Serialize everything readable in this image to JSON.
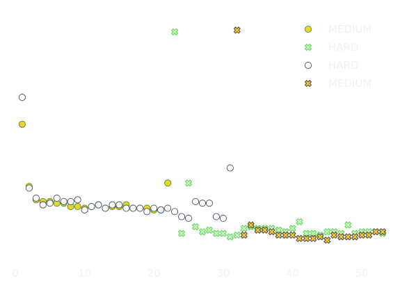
{
  "chart_data": {
    "type": "scatter",
    "title": "",
    "xlabel": "",
    "ylabel": "",
    "xlim": [
      -1,
      54
    ],
    "ylim": [
      -2,
      147
    ],
    "grid": false,
    "legend_placement": "top-right",
    "x_ticks": [
      0,
      10,
      20,
      30,
      40,
      50
    ],
    "y_ticks": [],
    "series": [
      {
        "name": "MEDIUM",
        "marker": "circle",
        "fill": "#e8d62a",
        "stroke": "#3a7f2a",
        "points": [
          [
            1,
            78
          ],
          [
            2,
            41
          ],
          [
            3,
            33
          ],
          [
            4,
            32
          ],
          [
            5,
            32
          ],
          [
            6,
            31
          ],
          [
            7,
            31
          ],
          [
            8,
            29
          ],
          [
            9,
            29
          ],
          [
            10,
            28
          ],
          [
            11,
            29
          ],
          [
            12,
            30
          ],
          [
            13,
            28
          ],
          [
            14,
            29
          ],
          [
            15,
            29
          ],
          [
            16,
            30
          ],
          [
            17,
            28
          ],
          [
            18,
            28
          ],
          [
            19,
            28
          ],
          [
            20,
            27
          ],
          [
            21,
            27
          ],
          [
            22,
            43
          ]
        ]
      },
      {
        "name": "HARD",
        "marker": "x",
        "fill": "#c8f5b8",
        "stroke": "#4fd24f",
        "points": [
          [
            23,
            133
          ],
          [
            24,
            13
          ],
          [
            25,
            43
          ],
          [
            26,
            17
          ],
          [
            27,
            14
          ],
          [
            28,
            15
          ],
          [
            29,
            13
          ],
          [
            30,
            13
          ],
          [
            31,
            11
          ],
          [
            32,
            12
          ],
          [
            33,
            16
          ],
          [
            34,
            17
          ],
          [
            35,
            16
          ],
          [
            36,
            16
          ],
          [
            37,
            16
          ],
          [
            38,
            15
          ],
          [
            39,
            14
          ],
          [
            40,
            16
          ],
          [
            41,
            20
          ],
          [
            42,
            13
          ],
          [
            43,
            13
          ],
          [
            44,
            12
          ],
          [
            45,
            14
          ],
          [
            46,
            14
          ],
          [
            47,
            13
          ],
          [
            48,
            18
          ],
          [
            49,
            13
          ],
          [
            50,
            14
          ],
          [
            51,
            14
          ],
          [
            52,
            14
          ],
          [
            53,
            13
          ]
        ]
      },
      {
        "name": "HARD",
        "marker": "circle",
        "fill": "#ffffff",
        "stroke": "#2b3a4a",
        "points": [
          [
            1,
            94
          ],
          [
            2,
            40
          ],
          [
            3,
            34
          ],
          [
            4,
            30
          ],
          [
            5,
            31
          ],
          [
            6,
            34
          ],
          [
            7,
            32
          ],
          [
            8,
            32
          ],
          [
            9,
            33
          ],
          [
            10,
            27
          ],
          [
            11,
            29
          ],
          [
            12,
            30
          ],
          [
            13,
            28
          ],
          [
            14,
            30
          ],
          [
            15,
            30
          ],
          [
            16,
            28
          ],
          [
            17,
            28
          ],
          [
            18,
            28
          ],
          [
            19,
            26
          ],
          [
            20,
            28
          ],
          [
            21,
            27
          ],
          [
            22,
            28
          ],
          [
            23,
            26
          ],
          [
            24,
            23
          ],
          [
            25,
            22
          ],
          [
            26,
            32
          ],
          [
            27,
            31
          ],
          [
            28,
            31
          ],
          [
            29,
            23
          ],
          [
            30,
            22
          ],
          [
            31,
            52
          ]
        ]
      },
      {
        "name": "MEDIUM",
        "marker": "x",
        "fill": "#f2c23a",
        "stroke": "#3a3a3a",
        "points": [
          [
            32,
            134
          ],
          [
            33,
            12
          ],
          [
            34,
            18
          ],
          [
            35,
            15
          ],
          [
            36,
            15
          ],
          [
            37,
            14
          ],
          [
            38,
            12
          ],
          [
            39,
            12
          ],
          [
            40,
            12
          ],
          [
            41,
            10
          ],
          [
            42,
            10
          ],
          [
            43,
            10
          ],
          [
            44,
            11
          ],
          [
            45,
            9
          ],
          [
            46,
            12
          ],
          [
            47,
            11
          ],
          [
            48,
            11
          ],
          [
            49,
            11
          ],
          [
            50,
            12
          ],
          [
            51,
            12
          ],
          [
            52,
            14
          ],
          [
            53,
            14
          ]
        ]
      }
    ]
  }
}
